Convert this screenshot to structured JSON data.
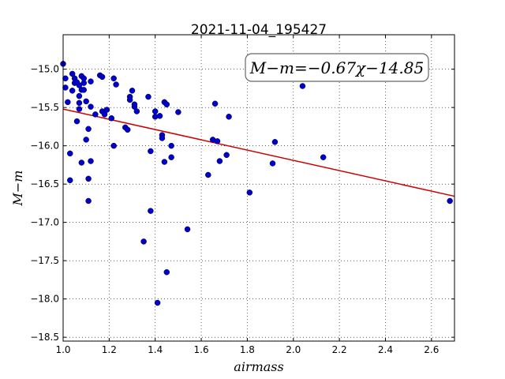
{
  "chart_data": {
    "type": "scatter",
    "title": "2021-11-04_195427",
    "xlabel": "airmass",
    "ylabel": "M−m",
    "xlim": [
      1.0,
      2.7
    ],
    "ylim": [
      -18.55,
      -14.55
    ],
    "y_inverted": true,
    "grid": true,
    "xticks": [
      1.0,
      1.2,
      1.4,
      1.6,
      1.8,
      2.0,
      2.2,
      2.4,
      2.6
    ],
    "xtick_labels": [
      "1.0",
      "1.2",
      "1.4",
      "1.6",
      "1.8",
      "2.0",
      "2.2",
      "2.4",
      "2.6"
    ],
    "yticks": [
      -15.0,
      -15.5,
      -16.0,
      -16.5,
      -17.0,
      -17.5,
      -18.0,
      -18.5
    ],
    "ytick_labels": [
      "−15.0",
      "−15.5",
      "−16.0",
      "−16.5",
      "−17.0",
      "−17.5",
      "−18.0",
      "−18.5"
    ],
    "annotation": "M−m=−0.67χ−14.85",
    "fit": {
      "slope": -0.67,
      "intercept": -14.85,
      "color": "#cc0000"
    },
    "point_color": "#0000cc",
    "points": [
      [
        1.0,
        -14.93
      ],
      [
        1.01,
        -15.12
      ],
      [
        1.01,
        -15.24
      ],
      [
        1.02,
        -15.43
      ],
      [
        1.03,
        -16.1
      ],
      [
        1.03,
        -16.45
      ],
      [
        1.04,
        -15.28
      ],
      [
        1.04,
        -15.06
      ],
      [
        1.05,
        -15.12
      ],
      [
        1.05,
        -15.18
      ],
      [
        1.06,
        -15.68
      ],
      [
        1.06,
        -15.17
      ],
      [
        1.07,
        -15.35
      ],
      [
        1.07,
        -15.52
      ],
      [
        1.07,
        -15.21
      ],
      [
        1.07,
        -15.44
      ],
      [
        1.08,
        -15.27
      ],
      [
        1.08,
        -15.09
      ],
      [
        1.08,
        -16.22
      ],
      [
        1.09,
        -15.18
      ],
      [
        1.09,
        -15.12
      ],
      [
        1.09,
        -15.27
      ],
      [
        1.1,
        -15.42
      ],
      [
        1.1,
        -15.92
      ],
      [
        1.11,
        -15.78
      ],
      [
        1.11,
        -16.43
      ],
      [
        1.11,
        -16.72
      ],
      [
        1.12,
        -15.16
      ],
      [
        1.12,
        -15.49
      ],
      [
        1.12,
        -16.2
      ],
      [
        1.14,
        -15.59
      ],
      [
        1.16,
        -15.08
      ],
      [
        1.17,
        -15.1
      ],
      [
        1.17,
        -15.55
      ],
      [
        1.18,
        -15.59
      ],
      [
        1.19,
        -15.53
      ],
      [
        1.21,
        -15.64
      ],
      [
        1.22,
        -16.0
      ],
      [
        1.22,
        -15.12
      ],
      [
        1.23,
        -15.2
      ],
      [
        1.27,
        -15.76
      ],
      [
        1.28,
        -15.79
      ],
      [
        1.29,
        -15.36
      ],
      [
        1.29,
        -15.4
      ],
      [
        1.3,
        -15.28
      ],
      [
        1.31,
        -15.49
      ],
      [
        1.31,
        -15.46
      ],
      [
        1.32,
        -15.55
      ],
      [
        1.35,
        -17.25
      ],
      [
        1.37,
        -15.36
      ],
      [
        1.38,
        -16.85
      ],
      [
        1.38,
        -16.07
      ],
      [
        1.4,
        -15.55
      ],
      [
        1.4,
        -15.62
      ],
      [
        1.41,
        -18.05
      ],
      [
        1.42,
        -15.61
      ],
      [
        1.43,
        -15.86
      ],
      [
        1.43,
        -15.9
      ],
      [
        1.44,
        -15.43
      ],
      [
        1.44,
        -16.21
      ],
      [
        1.45,
        -15.46
      ],
      [
        1.45,
        -17.65
      ],
      [
        1.47,
        -16.0
      ],
      [
        1.47,
        -16.15
      ],
      [
        1.5,
        -15.56
      ],
      [
        1.54,
        -17.09
      ],
      [
        1.63,
        -16.38
      ],
      [
        1.65,
        -15.92
      ],
      [
        1.66,
        -15.45
      ],
      [
        1.67,
        -15.94
      ],
      [
        1.68,
        -16.2
      ],
      [
        1.71,
        -16.12
      ],
      [
        1.72,
        -15.62
      ],
      [
        1.81,
        -16.61
      ],
      [
        1.91,
        -16.23
      ],
      [
        1.92,
        -15.95
      ],
      [
        2.04,
        -15.22
      ],
      [
        2.13,
        -16.15
      ],
      [
        2.68,
        -16.72
      ]
    ]
  }
}
